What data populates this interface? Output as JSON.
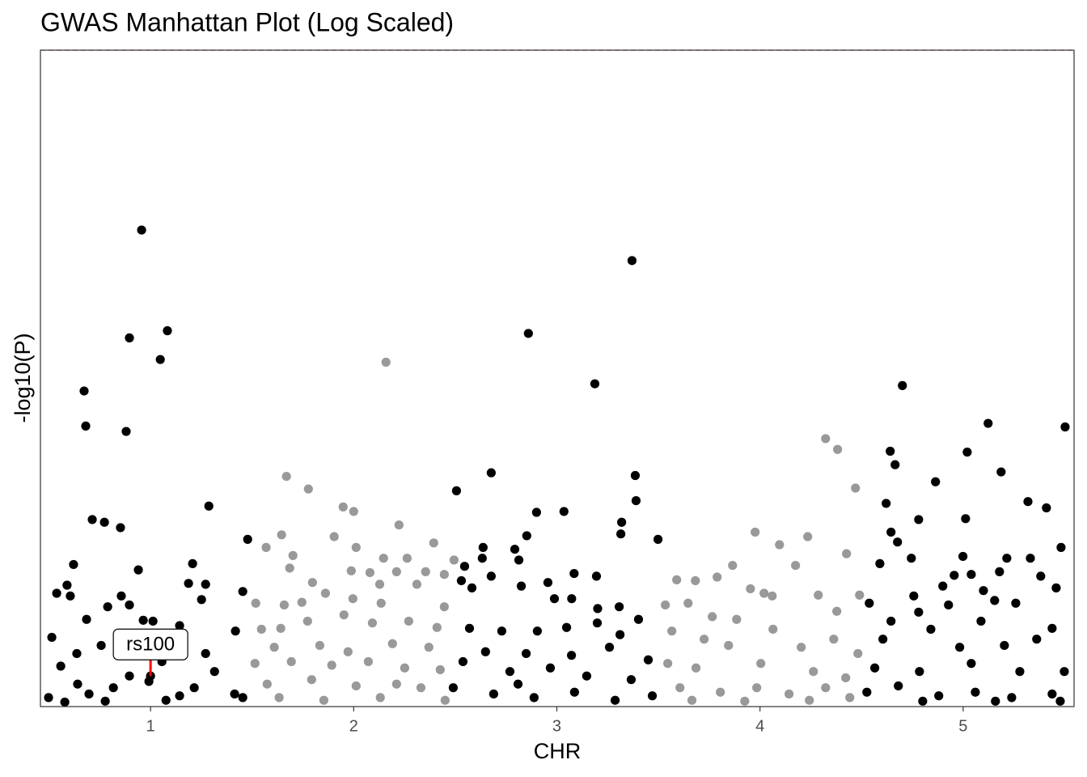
{
  "chart_data": {
    "type": "scatter",
    "title": "GWAS Manhattan Plot (Log Scaled)",
    "x_label": "CHR",
    "y_label": "-log10(P)",
    "xlim": [
      0.458,
      5.546
    ],
    "xticks": [
      1,
      2,
      3,
      4,
      5
    ],
    "ylim": [
      0,
      7.3
    ],
    "hline": 7.3,
    "hline_color": "#b22222",
    "annotation": {
      "text": "rs100",
      "x": 1.0,
      "y": 0.34,
      "color": "#ff0000"
    },
    "series": [
      {
        "color": "#000000",
        "x": [
          0.956,
          0.896,
          1.083,
          1.048,
          0.673,
          0.681,
          0.88,
          0.713,
          0.773,
          0.852,
          1.287,
          1.478,
          0.621,
          0.94,
          1.207,
          0.538,
          0.589,
          0.605,
          0.856,
          1.187,
          1.271,
          0.789,
          0.896,
          1.251,
          1.454,
          0.514,
          0.685,
          0.964,
          1.012,
          1.143,
          1.418,
          0.757,
          0.637,
          1.271,
          1.056,
          0.558,
          0.992,
          0.817,
          0.697,
          0.498,
          1.143,
          1.414,
          0.641,
          0.896,
          1.315,
          1.215,
          1.454,
          0.578,
          1.076,
          0.777,
          1.0,
          3.37,
          2.86,
          3.187,
          2.506,
          2.677,
          3.386,
          3.39,
          2.9,
          3.035,
          3.319,
          3.315,
          3.498,
          2.852,
          2.637,
          2.793,
          2.546,
          2.633,
          2.813,
          2.677,
          2.956,
          3.085,
          3.195,
          2.53,
          2.582,
          2.825,
          2.988,
          3.073,
          3.201,
          3.307,
          3.402,
          2.57,
          2.729,
          2.904,
          3.048,
          3.199,
          3.311,
          2.649,
          2.849,
          3.072,
          3.259,
          3.45,
          2.538,
          2.769,
          2.968,
          3.147,
          3.366,
          2.49,
          2.689,
          2.888,
          3.087,
          3.287,
          3.47,
          2.809,
          4.701,
          5.123,
          5.502,
          4.641,
          4.665,
          5.02,
          5.187,
          4.864,
          4.621,
          5.319,
          5.41,
          4.781,
          5.012,
          4.645,
          4.677,
          4.745,
          4.999,
          4.59,
          5.215,
          5.331,
          5.482,
          4.956,
          5.04,
          5.179,
          5.382,
          4.757,
          4.9,
          5.1,
          5.458,
          4.538,
          4.781,
          4.928,
          5.155,
          5.259,
          4.645,
          4.841,
          5.088,
          5.438,
          4.605,
          4.983,
          5.203,
          5.362,
          4.565,
          4.785,
          5.04,
          5.279,
          5.498,
          4.526,
          4.681,
          4.88,
          5.06,
          5.239,
          5.438,
          4.801,
          5.159,
          5.478
        ],
        "values": [
          5.3,
          4.1,
          4.18,
          3.86,
          3.51,
          3.12,
          3.06,
          2.08,
          2.05,
          1.99,
          2.23,
          1.86,
          1.58,
          1.52,
          1.59,
          1.26,
          1.35,
          1.23,
          1.23,
          1.37,
          1.36,
          1.11,
          1.13,
          1.19,
          1.28,
          0.77,
          0.97,
          0.96,
          0.95,
          0.9,
          0.84,
          0.68,
          0.59,
          0.59,
          0.5,
          0.45,
          0.28,
          0.21,
          0.14,
          0.1,
          0.12,
          0.14,
          0.25,
          0.34,
          0.39,
          0.21,
          0.1,
          0.05,
          0.07,
          0.06,
          0.34,
          4.96,
          4.15,
          3.59,
          2.4,
          2.6,
          2.57,
          2.29,
          2.16,
          2.17,
          2.05,
          1.92,
          1.86,
          1.9,
          1.77,
          1.75,
          1.56,
          1.65,
          1.63,
          1.45,
          1.38,
          1.48,
          1.45,
          1.4,
          1.32,
          1.34,
          1.2,
          1.2,
          1.09,
          1.11,
          0.97,
          0.87,
          0.84,
          0.84,
          0.88,
          0.93,
          0.8,
          0.61,
          0.59,
          0.57,
          0.66,
          0.52,
          0.5,
          0.39,
          0.43,
          0.34,
          0.3,
          0.21,
          0.14,
          0.1,
          0.16,
          0.07,
          0.12,
          0.25,
          3.57,
          3.15,
          3.11,
          2.84,
          2.69,
          2.83,
          2.61,
          2.5,
          2.26,
          2.28,
          2.21,
          2.08,
          2.09,
          1.94,
          1.83,
          1.65,
          1.67,
          1.59,
          1.65,
          1.65,
          1.77,
          1.46,
          1.47,
          1.5,
          1.45,
          1.23,
          1.34,
          1.29,
          1.32,
          1.15,
          1.05,
          1.13,
          1.18,
          1.15,
          0.95,
          0.86,
          0.95,
          0.87,
          0.75,
          0.66,
          0.68,
          0.75,
          0.43,
          0.39,
          0.48,
          0.39,
          0.39,
          0.16,
          0.23,
          0.12,
          0.16,
          0.1,
          0.14,
          0.06,
          0.06,
          0.06
        ]
      },
      {
        "color": "#999999",
        "x": [
          2.159,
          1.669,
          1.777,
          1.948,
          2.0,
          2.223,
          2.394,
          1.645,
          1.904,
          1.569,
          1.701,
          2.012,
          2.147,
          2.263,
          2.494,
          1.685,
          1.988,
          2.08,
          2.211,
          2.354,
          2.446,
          1.797,
          1.861,
          2.128,
          2.311,
          1.518,
          1.658,
          1.745,
          1.996,
          2.135,
          2.446,
          1.546,
          1.641,
          1.773,
          1.952,
          2.092,
          2.271,
          2.41,
          1.609,
          1.833,
          1.972,
          2.191,
          2.37,
          1.514,
          1.693,
          1.892,
          2.072,
          2.251,
          2.426,
          1.574,
          1.793,
          2.012,
          2.211,
          2.331,
          1.633,
          1.853,
          2.131,
          2.45,
          4.323,
          4.382,
          4.47,
          3.976,
          4.235,
          4.096,
          4.426,
          4.175,
          3.865,
          3.789,
          3.682,
          3.59,
          3.953,
          4.287,
          4.49,
          4.02,
          3.534,
          3.646,
          3.765,
          3.885,
          4.06,
          4.378,
          3.566,
          3.725,
          3.845,
          4.064,
          4.203,
          4.363,
          4.482,
          3.546,
          3.685,
          4.004,
          4.263,
          4.422,
          3.606,
          3.805,
          3.984,
          4.143,
          4.323,
          3.665,
          3.925,
          4.243,
          4.442
        ],
        "values": [
          3.83,
          2.56,
          2.42,
          2.22,
          2.17,
          2.02,
          1.82,
          1.91,
          1.89,
          1.77,
          1.68,
          1.77,
          1.65,
          1.65,
          1.63,
          1.54,
          1.51,
          1.49,
          1.5,
          1.5,
          1.47,
          1.38,
          1.26,
          1.36,
          1.36,
          1.15,
          1.13,
          1.16,
          1.2,
          1.15,
          1.11,
          0.86,
          0.87,
          0.95,
          1.02,
          0.93,
          0.95,
          0.88,
          0.66,
          0.68,
          0.61,
          0.7,
          0.66,
          0.48,
          0.5,
          0.46,
          0.5,
          0.43,
          0.41,
          0.25,
          0.3,
          0.23,
          0.25,
          0.21,
          0.1,
          0.07,
          0.1,
          0.07,
          2.98,
          2.86,
          2.43,
          1.94,
          1.89,
          1.8,
          1.7,
          1.57,
          1.57,
          1.44,
          1.4,
          1.41,
          1.31,
          1.24,
          1.24,
          1.26,
          1.13,
          1.15,
          1.0,
          0.97,
          1.23,
          1.06,
          0.84,
          0.75,
          0.68,
          0.86,
          0.66,
          0.75,
          0.59,
          0.48,
          0.43,
          0.48,
          0.39,
          0.32,
          0.21,
          0.16,
          0.21,
          0.14,
          0.21,
          0.07,
          0.06,
          0.07,
          0.1
        ]
      }
    ]
  }
}
